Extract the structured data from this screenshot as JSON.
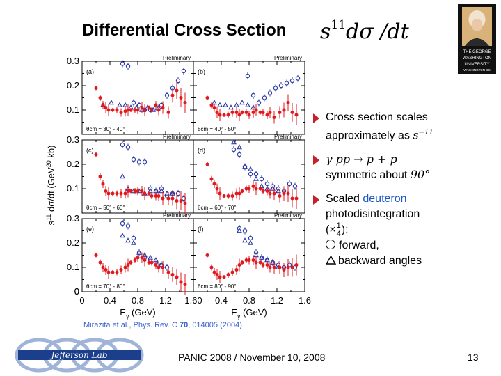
{
  "slide": {
    "title": "Differential Cross Section",
    "title_math_base": "s",
    "title_math_exp": "11",
    "title_math_tail": "dσ /dt",
    "footer": "PANIC 2008 / November 10, 2008",
    "page_number": "13",
    "reference": {
      "authors": "Mirazita et al., Phys. Rev. C ",
      "volume": "70",
      "rest": ", 014005 (2004)"
    },
    "logos": {
      "university_lines": [
        "THE GEORGE",
        "WASHINGTON",
        "UNIVERSITY",
        "WASHINGTON DC"
      ],
      "lab_text": "Jefferson Lab"
    }
  },
  "bullets": [
    {
      "lines": [
        "Cross section scales",
        "approximately as"
      ],
      "math": "s",
      "math_exp": "−11"
    },
    {
      "math_line": "γ pp → p + p",
      "text": "symmetric about",
      "math_tail": "90°"
    },
    {
      "text_a": "Scaled ",
      "text_blue": "deuteron",
      "line2": "photodisintegration",
      "scale_prefix": "(×",
      "scale_num": "1",
      "scale_den": "4",
      "scale_suffix": "):",
      "forward": "forward,",
      "backward": "backward angles"
    }
  ],
  "axes": {
    "ylabel": "s11 dσ/dt (GeV20 kb)",
    "ylabel_parts": [
      "s",
      "11",
      " dσ/dt (GeV",
      "20",
      " kb)"
    ],
    "xlabel_parts": [
      "E",
      "γ",
      " (GeV)"
    ],
    "xticks_left": [
      "0",
      "0.4",
      "0.8",
      "1.2",
      "1.60"
    ],
    "xticks_right": [
      "0.4",
      "0.8",
      "1.2",
      "1.6"
    ],
    "yticks": [
      "0",
      "0.1",
      "0.2",
      "0.3"
    ],
    "preliminary": "Preliminary"
  },
  "colors": {
    "pp": "#e0191e",
    "forward": "#2b3aa8",
    "backward": "#2b3aa8",
    "accent": "#c8202a",
    "link": "#3b63d1"
  },
  "chart_data": {
    "type": "scatter",
    "xlim": [
      0,
      1.6
    ],
    "ylim": [
      0,
      0.3
    ],
    "panels": [
      {
        "label": "(a)",
        "angle": "θcm = 30° - 40°",
        "pp": {
          "x": [
            0.2,
            0.26,
            0.3,
            0.34,
            0.38,
            0.44,
            0.5,
            0.56,
            0.62,
            0.66,
            0.7,
            0.76,
            0.8,
            0.86,
            0.9,
            0.96,
            1.0,
            1.06,
            1.1,
            1.16,
            1.24,
            1.3,
            1.36,
            1.42,
            1.48
          ],
          "y": [
            0.19,
            0.15,
            0.12,
            0.11,
            0.1,
            0.1,
            0.1,
            0.09,
            0.095,
            0.1,
            0.1,
            0.1,
            0.1,
            0.11,
            0.1,
            0.11,
            0.1,
            0.12,
            0.1,
            0.11,
            0.09,
            0.16,
            0.18,
            0.15,
            0.13
          ]
        },
        "fwd": {
          "x": [
            0.58,
            0.66,
            0.74,
            0.82,
            0.9,
            0.98,
            1.06,
            1.14,
            1.22,
            1.3,
            1.38,
            1.46
          ],
          "y": [
            0.29,
            0.28,
            0.13,
            0.12,
            0.1,
            0.1,
            0.11,
            0.12,
            0.16,
            0.19,
            0.22,
            0.26
          ]
        },
        "bwd": {
          "x": [
            0.3,
            0.42,
            0.54,
            0.62,
            0.7,
            0.78,
            0.86,
            0.94,
            1.02,
            1.1
          ],
          "y": [
            0.12,
            0.13,
            0.12,
            0.12,
            0.11,
            0.11,
            0.1,
            0.11,
            0.1,
            0.11
          ]
        }
      },
      {
        "label": "(b)",
        "angle": "θcm = 40° - 50°",
        "pp": {
          "x": [
            0.2,
            0.26,
            0.3,
            0.34,
            0.38,
            0.44,
            0.5,
            0.56,
            0.62,
            0.66,
            0.7,
            0.76,
            0.8,
            0.86,
            0.9,
            0.96,
            1.0,
            1.06,
            1.1,
            1.16,
            1.24,
            1.3,
            1.36,
            1.42,
            1.48
          ],
          "y": [
            0.15,
            0.12,
            0.11,
            0.09,
            0.08,
            0.08,
            0.08,
            0.09,
            0.09,
            0.08,
            0.09,
            0.09,
            0.08,
            0.09,
            0.1,
            0.09,
            0.09,
            0.08,
            0.09,
            0.07,
            0.09,
            0.1,
            0.13,
            0.09,
            0.08
          ]
        },
        "fwd": {
          "x": [
            0.78,
            0.86,
            0.94,
            1.02,
            1.1,
            1.18,
            1.26,
            1.34,
            1.42,
            1.5
          ],
          "y": [
            0.24,
            0.16,
            0.13,
            0.15,
            0.17,
            0.19,
            0.2,
            0.21,
            0.22,
            0.23
          ]
        },
        "bwd": {
          "x": [
            0.3,
            0.38,
            0.46,
            0.54,
            0.62,
            0.7,
            0.78,
            0.86
          ],
          "y": [
            0.13,
            0.12,
            0.12,
            0.11,
            0.12,
            0.13,
            0.12,
            0.11
          ]
        }
      },
      {
        "label": "(c)",
        "angle": "θcm = 50° - 60°",
        "pp": {
          "x": [
            0.2,
            0.26,
            0.3,
            0.34,
            0.38,
            0.44,
            0.5,
            0.56,
            0.62,
            0.66,
            0.7,
            0.76,
            0.8,
            0.86,
            0.9,
            0.96,
            1.0,
            1.06,
            1.1,
            1.16,
            1.24,
            1.3,
            1.36,
            1.42,
            1.48
          ],
          "y": [
            0.24,
            0.15,
            0.12,
            0.09,
            0.08,
            0.08,
            0.08,
            0.08,
            0.08,
            0.09,
            0.09,
            0.09,
            0.09,
            0.09,
            0.08,
            0.08,
            0.07,
            0.07,
            0.07,
            0.06,
            0.06,
            0.06,
            0.05,
            0.05,
            0.04
          ]
        },
        "fwd": {
          "x": [
            0.58,
            0.66,
            0.74,
            0.82,
            0.9,
            0.98,
            1.06,
            1.14,
            1.22,
            1.3,
            1.38,
            1.46
          ],
          "y": [
            0.28,
            0.27,
            0.22,
            0.21,
            0.21,
            0.1,
            0.09,
            0.1,
            0.07,
            0.08,
            0.08,
            0.06
          ]
        },
        "bwd": {
          "x": [
            0.58,
            0.66,
            0.74,
            0.82,
            0.9,
            0.98,
            1.06,
            1.14,
            1.22,
            1.3
          ],
          "y": [
            0.15,
            0.1,
            0.09,
            0.09,
            0.08,
            0.09,
            0.09,
            0.09,
            0.08,
            0.08
          ]
        }
      },
      {
        "label": "(d)",
        "angle": "θcm = 60° - 70°",
        "pp": {
          "x": [
            0.2,
            0.26,
            0.3,
            0.34,
            0.38,
            0.44,
            0.5,
            0.56,
            0.62,
            0.66,
            0.7,
            0.76,
            0.8,
            0.86,
            0.9,
            0.96,
            1.0,
            1.06,
            1.1,
            1.16,
            1.24,
            1.3,
            1.36,
            1.42,
            1.48
          ],
          "y": [
            0.2,
            0.14,
            0.12,
            0.1,
            0.08,
            0.07,
            0.07,
            0.07,
            0.08,
            0.08,
            0.09,
            0.1,
            0.1,
            0.11,
            0.1,
            0.1,
            0.09,
            0.09,
            0.08,
            0.08,
            0.07,
            0.08,
            0.08,
            0.06,
            0.06
          ]
        },
        "fwd": {
          "x": [
            0.58,
            0.66,
            0.74,
            0.82,
            0.9,
            0.98,
            1.06,
            1.14,
            1.22,
            1.3,
            1.38,
            1.46
          ],
          "y": [
            0.26,
            0.24,
            0.19,
            0.16,
            0.16,
            0.14,
            0.12,
            0.11,
            0.1,
            0.09,
            0.12,
            0.11
          ]
        },
        "bwd": {
          "x": [
            0.58,
            0.66,
            0.74,
            0.82,
            0.9,
            0.98,
            1.06,
            1.14,
            1.22
          ],
          "y": [
            0.29,
            0.27,
            0.19,
            0.18,
            0.14,
            0.11,
            0.1,
            0.1,
            0.09
          ]
        }
      },
      {
        "label": "(e)",
        "angle": "θcm = 70° - 80°",
        "pp": {
          "x": [
            0.2,
            0.26,
            0.3,
            0.34,
            0.38,
            0.44,
            0.5,
            0.56,
            0.62,
            0.66,
            0.7,
            0.76,
            0.8,
            0.86,
            0.9,
            0.96,
            1.0,
            1.06,
            1.1,
            1.16,
            1.24,
            1.3,
            1.36,
            1.42,
            1.48
          ],
          "y": [
            0.15,
            0.12,
            0.1,
            0.09,
            0.08,
            0.08,
            0.08,
            0.09,
            0.1,
            0.11,
            0.12,
            0.13,
            0.14,
            0.14,
            0.13,
            0.12,
            0.12,
            0.11,
            0.1,
            0.1,
            0.08,
            0.07,
            0.06,
            0.04,
            0.03
          ]
        },
        "fwd": {
          "x": [
            0.58,
            0.66,
            0.74,
            0.82,
            0.9,
            0.98,
            1.06,
            1.14,
            1.22
          ],
          "y": [
            0.28,
            0.27,
            0.22,
            0.16,
            0.14,
            0.13,
            0.12,
            0.11,
            0.1
          ]
        },
        "bwd": {
          "x": [
            0.58,
            0.66,
            0.74,
            0.82,
            0.9,
            0.98,
            1.06,
            1.14
          ],
          "y": [
            0.23,
            0.21,
            0.2,
            0.16,
            0.15,
            0.14,
            0.13,
            0.11
          ]
        }
      },
      {
        "label": "(f)",
        "angle": "θcm = 80° - 90°",
        "pp": {
          "x": [
            0.2,
            0.26,
            0.3,
            0.34,
            0.38,
            0.44,
            0.5,
            0.56,
            0.62,
            0.66,
            0.7,
            0.76,
            0.8,
            0.86,
            0.9,
            0.96,
            1.0,
            1.06,
            1.1,
            1.16,
            1.24,
            1.3,
            1.36,
            1.42,
            1.48
          ],
          "y": [
            0.15,
            0.1,
            0.08,
            0.07,
            0.06,
            0.06,
            0.07,
            0.08,
            0.09,
            0.11,
            0.12,
            0.13,
            0.13,
            0.13,
            0.12,
            0.12,
            0.11,
            0.11,
            0.1,
            0.1,
            0.1,
            0.09,
            0.1,
            0.1,
            0.11
          ]
        },
        "fwd": {
          "x": [
            0.66,
            0.74,
            0.82,
            0.9,
            0.98,
            1.06,
            1.14,
            1.22,
            1.3,
            1.38,
            1.46
          ],
          "y": [
            0.26,
            0.25,
            0.22,
            0.16,
            0.14,
            0.13,
            0.12,
            0.11,
            0.1,
            0.11,
            0.1
          ]
        },
        "bwd": {
          "x": [
            0.66,
            0.74,
            0.82,
            0.9,
            0.98,
            1.06,
            1.14,
            1.22
          ],
          "y": [
            0.25,
            0.21,
            0.2,
            0.15,
            0.14,
            0.13,
            0.12,
            0.1
          ]
        }
      }
    ]
  }
}
